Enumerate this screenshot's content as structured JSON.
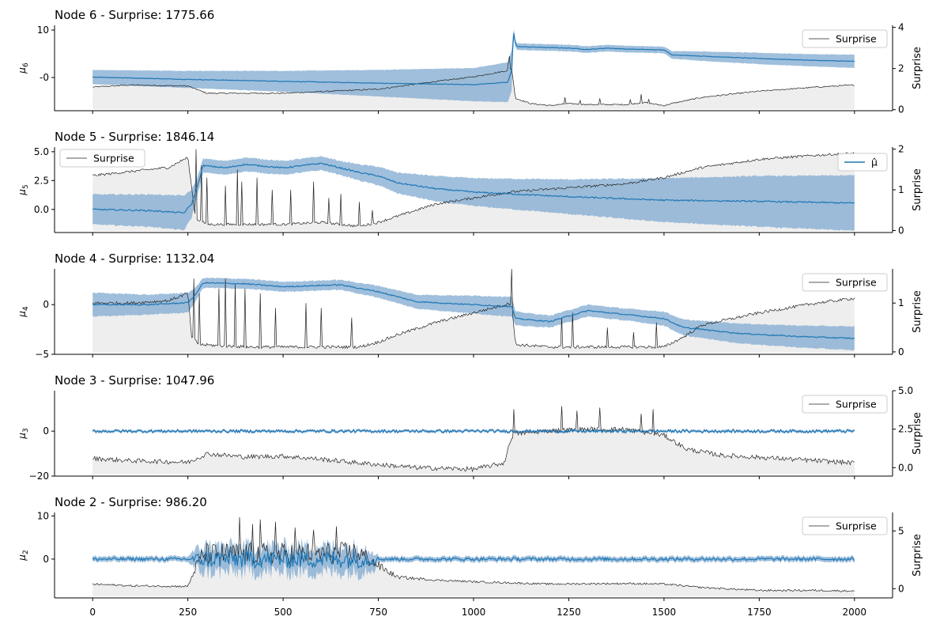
{
  "colors": {
    "mean": "#1f77b4",
    "band": "#7fa9d0",
    "surprise_line": "#222222",
    "surprise_fill": "#eeeeee",
    "axis": "#000000"
  },
  "chart_data": [
    {
      "type": "line",
      "title": "Node 6 - Surprise: 1775.66",
      "ylabel": "μ6",
      "y2label": "Surprise",
      "xlim": [
        -100,
        2100
      ],
      "ylim": [
        -7,
        11
      ],
      "y2lim": [
        -0.05,
        4.1
      ],
      "yticks": [
        "-0",
        "10"
      ],
      "yticks_values": [
        0,
        10
      ],
      "y2ticks": [
        "0",
        "2",
        "4"
      ],
      "y2ticks_values": [
        0,
        2,
        4
      ],
      "legend": "top-right",
      "legend_entries": [
        "Surprise"
      ],
      "series": [
        {
          "name": "μ̂",
          "kind": "mean",
          "x": [
            0,
            250,
            500,
            750,
            1000,
            1090,
            1100,
            1105,
            1110,
            1115,
            1250,
            1300,
            1350,
            1400,
            1500,
            1520,
            1600,
            1750,
            1900,
            2000
          ],
          "values": [
            0.1,
            -0.4,
            -0.8,
            -1.2,
            -1.5,
            -1.0,
            1.5,
            9.8,
            7,
            6.5,
            6.2,
            5.9,
            6.2,
            6.0,
            5.8,
            4.8,
            4.5,
            4.0,
            3.6,
            3.4
          ],
          "band": [
            1.5,
            1.8,
            2.2,
            2.8,
            3.5,
            4.2,
            4.3,
            0.8,
            0.7,
            0.7,
            0.7,
            0.7,
            0.7,
            0.7,
            0.7,
            0.8,
            1.0,
            1.2,
            1.3,
            1.4
          ]
        },
        {
          "name": "Surprise",
          "kind": "surprise",
          "x": [
            0,
            100,
            250,
            300,
            500,
            750,
            850,
            1000,
            1090,
            1100,
            1110,
            1150,
            1200,
            1250,
            1300,
            1400,
            1450,
            1500,
            1520,
            1600,
            1750,
            1900,
            2000
          ],
          "values": [
            1.1,
            1.2,
            1.15,
            0.8,
            0.8,
            1.0,
            1.25,
            1.6,
            1.9,
            2.0,
            0.55,
            0.3,
            0.2,
            0.3,
            0.25,
            0.25,
            0.35,
            0.2,
            0.3,
            0.6,
            0.9,
            1.1,
            1.2
          ],
          "spikes": [
            [
              1090,
              2.3
            ],
            [
              1095,
              2.6
            ],
            [
              1240,
              0.6
            ],
            [
              1280,
              0.45
            ],
            [
              1330,
              0.55
            ],
            [
              1410,
              0.5
            ],
            [
              1440,
              0.75
            ],
            [
              1460,
              0.5
            ]
          ]
        }
      ]
    },
    {
      "type": "line",
      "title": "Node 5 - Surprise: 1846.14",
      "ylabel": "μ5",
      "y2label": "Surprise",
      "xlim": [
        -100,
        2100
      ],
      "ylim": [
        -2,
        5.4
      ],
      "y2lim": [
        -0.05,
        2.05
      ],
      "yticks": [
        "0.0",
        "2.5",
        "5.0"
      ],
      "yticks_values": [
        0,
        2.5,
        5
      ],
      "y2ticks": [
        "0",
        "1",
        "2"
      ],
      "y2ticks_values": [
        0,
        1,
        2
      ],
      "legend": "top-left",
      "legend2": "top-right",
      "legend_entries": [
        "Surprise"
      ],
      "legend2_entries": [
        "μ̂"
      ],
      "series": [
        {
          "name": "μ̂",
          "kind": "mean",
          "x": [
            0,
            150,
            240,
            260,
            275,
            290,
            350,
            400,
            500,
            600,
            650,
            700,
            750,
            800,
            900,
            1000,
            1250,
            1500,
            1750,
            2000
          ],
          "values": [
            0,
            -0.1,
            -0.3,
            0.5,
            2.0,
            3.8,
            3.6,
            3.9,
            3.6,
            4.0,
            3.6,
            3.2,
            2.9,
            2.3,
            1.8,
            1.5,
            1.1,
            0.8,
            0.7,
            0.55
          ],
          "band": [
            1.3,
            1.4,
            1.5,
            1.2,
            0.8,
            0.6,
            0.6,
            0.6,
            0.6,
            0.6,
            0.6,
            0.7,
            0.8,
            0.9,
            1.1,
            1.2,
            1.5,
            1.9,
            2.2,
            2.4
          ]
        },
        {
          "name": "Surprise",
          "kind": "surprise",
          "x": [
            0,
            100,
            200,
            250,
            270,
            300,
            400,
            500,
            600,
            700,
            750,
            800,
            850,
            900,
            1000,
            1100,
            1250,
            1400,
            1500,
            1600,
            1750,
            1900,
            2000
          ],
          "values": [
            1.35,
            1.45,
            1.55,
            1.8,
            0.3,
            0.15,
            0.15,
            0.15,
            0.2,
            0.1,
            0.2,
            0.35,
            0.5,
            0.65,
            0.8,
            0.95,
            1.05,
            1.15,
            1.3,
            1.55,
            1.75,
            1.85,
            1.9
          ],
          "spikes": [
            [
              270,
              2.0
            ],
            [
              285,
              1.6
            ],
            [
              300,
              1.3
            ],
            [
              350,
              1.1
            ],
            [
              380,
              1.5
            ],
            [
              390,
              1.2
            ],
            [
              430,
              1.3
            ],
            [
              470,
              1.0
            ],
            [
              520,
              1.0
            ],
            [
              580,
              1.2
            ],
            [
              620,
              0.8
            ],
            [
              650,
              0.9
            ],
            [
              700,
              0.7
            ],
            [
              735,
              0.5
            ]
          ]
        }
      ]
    },
    {
      "type": "line",
      "title": "Node 4 - Surprise: 1132.04",
      "ylabel": "μ4",
      "y2label": "Surprise",
      "xlim": [
        -100,
        2100
      ],
      "ylim": [
        -5,
        3.6
      ],
      "y2lim": [
        -0.05,
        1.7
      ],
      "yticks": [
        "−5",
        "0"
      ],
      "yticks_values": [
        -5,
        0
      ],
      "y2ticks": [
        "0",
        "1"
      ],
      "y2ticks_values": [
        0,
        1
      ],
      "legend": "top-right",
      "legend_entries": [
        "Surprise"
      ],
      "series": [
        {
          "name": "μ̂",
          "kind": "mean",
          "x": [
            0,
            150,
            250,
            270,
            290,
            400,
            500,
            650,
            750,
            850,
            1000,
            1100,
            1110,
            1200,
            1300,
            1400,
            1500,
            1550,
            1700,
            1850,
            2000
          ],
          "values": [
            0,
            0,
            0.2,
            1.0,
            2.2,
            2.1,
            1.8,
            2.0,
            1.3,
            0.3,
            0,
            -0.2,
            -1.4,
            -1.7,
            -0.6,
            -1.0,
            -1.4,
            -2.3,
            -2.9,
            -3.2,
            -3.4
          ],
          "band": [
            1.2,
            1.0,
            1.0,
            0.7,
            0.5,
            0.5,
            0.5,
            0.5,
            0.6,
            0.7,
            0.9,
            1.0,
            0.7,
            0.6,
            0.6,
            0.6,
            0.7,
            0.8,
            1.0,
            1.1,
            1.2
          ]
        },
        {
          "name": "Surprise",
          "kind": "surprise",
          "x": [
            0,
            100,
            200,
            250,
            260,
            280,
            400,
            500,
            600,
            700,
            750,
            800,
            900,
            1000,
            1100,
            1110,
            1200,
            1300,
            1450,
            1500,
            1550,
            1600,
            1750,
            1900,
            2000
          ],
          "values": [
            1.0,
            1.0,
            1.05,
            1.2,
            0.3,
            0.15,
            0.1,
            0.1,
            0.1,
            0.1,
            0.2,
            0.35,
            0.6,
            0.8,
            1.0,
            0.15,
            0.1,
            0.1,
            0.1,
            0.1,
            0.3,
            0.55,
            0.8,
            1.0,
            1.1
          ],
          "spikes": [
            [
              265,
              1.5
            ],
            [
              280,
              1.2
            ],
            [
              330,
              1.3
            ],
            [
              350,
              1.5
            ],
            [
              375,
              1.4
            ],
            [
              400,
              1.3
            ],
            [
              440,
              1.2
            ],
            [
              480,
              0.9
            ],
            [
              560,
              1.0
            ],
            [
              600,
              0.9
            ],
            [
              680,
              0.7
            ],
            [
              1100,
              1.7
            ],
            [
              1230,
              0.7
            ],
            [
              1260,
              0.8
            ],
            [
              1350,
              0.5
            ],
            [
              1420,
              0.4
            ],
            [
              1480,
              0.6
            ]
          ]
        }
      ]
    },
    {
      "type": "line",
      "title": "Node 3 - Surprise: 1047.96",
      "ylabel": "μ3",
      "y2label": "Surprise",
      "xlim": [
        -100,
        2100
      ],
      "ylim": [
        -20,
        18
      ],
      "y2lim": [
        -0.55,
        5.0
      ],
      "yticks": [
        "−20",
        "0"
      ],
      "yticks_values": [
        -20,
        0
      ],
      "y2ticks": [
        "0.0",
        "2.5",
        "5.0"
      ],
      "y2ticks_values": [
        0,
        2.5,
        5
      ],
      "legend": "top-right",
      "legend_entries": [
        "Surprise"
      ],
      "series": [
        {
          "name": "μ̂",
          "kind": "mean",
          "noise": 0.6,
          "x": [
            0,
            500,
            1000,
            1500,
            2000
          ],
          "values": [
            0,
            0,
            0,
            0,
            0
          ],
          "band": [
            0.6,
            0.6,
            0.6,
            0.6,
            0.6
          ]
        },
        {
          "name": "Surprise",
          "kind": "surprise",
          "noise": 0.15,
          "x": [
            0,
            100,
            250,
            300,
            400,
            500,
            600,
            700,
            850,
            1000,
            1080,
            1100,
            1110,
            1200,
            1300,
            1400,
            1500,
            1560,
            1650,
            1800,
            2000
          ],
          "values": [
            0.6,
            0.45,
            0.35,
            0.9,
            0.7,
            0.75,
            0.55,
            0.3,
            0.0,
            -0.1,
            0.3,
            2.0,
            2.2,
            2.4,
            2.5,
            2.5,
            2.1,
            1.2,
            0.8,
            0.6,
            0.3
          ],
          "spikes": [
            [
              1105,
              3.8
            ],
            [
              1230,
              4.0
            ],
            [
              1270,
              3.7
            ],
            [
              1330,
              3.9
            ],
            [
              1440,
              3.5
            ],
            [
              1470,
              3.8
            ]
          ]
        }
      ]
    },
    {
      "type": "line",
      "title": "Node 2 - Surprise: 986.20",
      "ylabel": "μ2",
      "y2label": "Surprise",
      "xlim": [
        -100,
        2100
      ],
      "ylim": [
        -9,
        10.8
      ],
      "y2lim": [
        -0.8,
        6.6
      ],
      "yticks": [
        "0",
        "10"
      ],
      "yticks_values": [
        0,
        10
      ],
      "y2ticks": [
        "0",
        "5"
      ],
      "y2ticks_values": [
        0,
        5
      ],
      "legend": "top-right",
      "legend_entries": [
        "Surprise"
      ],
      "series": [
        {
          "name": "μ̂",
          "kind": "mean",
          "noise": 0.35,
          "x": [
            0,
            250,
            260,
            290,
            700,
            740,
            750,
            1000,
            1500,
            2000
          ],
          "values": [
            0,
            0,
            0,
            0,
            0,
            0,
            0,
            0,
            0,
            0
          ],
          "noiseScale": [
            1,
            1,
            2,
            6,
            6,
            4,
            1,
            1,
            1,
            1
          ],
          "band": [
            0.6,
            0.6,
            1.5,
            3,
            3,
            2,
            0.6,
            0.6,
            0.6,
            0.6
          ]
        },
        {
          "name": "Surprise",
          "kind": "surprise",
          "noise": 0.08,
          "x": [
            0,
            100,
            250,
            270,
            290,
            700,
            740,
            800,
            900,
            1000,
            1200,
            1400,
            1500,
            1600,
            1750,
            1900,
            2000
          ],
          "values": [
            0.4,
            0.25,
            0.2,
            1.8,
            3.0,
            3.1,
            2.2,
            1.0,
            0.75,
            0.6,
            0.4,
            0.45,
            0.4,
            0.1,
            -0.15,
            -0.15,
            -0.2
          ],
          "noiseScale": [
            1,
            1,
            1,
            6,
            12,
            12,
            6,
            2,
            1,
            1,
            1,
            1,
            1,
            1,
            1,
            1,
            1
          ],
          "spikes": [
            [
              385,
              6.2
            ],
            [
              420,
              5.6
            ],
            [
              440,
              6.0
            ],
            [
              480,
              5.8
            ],
            [
              530,
              5.3
            ],
            [
              580,
              5.1
            ],
            [
              640,
              5.4
            ]
          ]
        }
      ]
    }
  ],
  "xaxis": {
    "ticks": [
      "0",
      "250",
      "500",
      "750",
      "1000",
      "1250",
      "1500",
      "1750",
      "2000"
    ],
    "tick_values": [
      0,
      250,
      500,
      750,
      1000,
      1250,
      1500,
      1750,
      2000
    ]
  }
}
